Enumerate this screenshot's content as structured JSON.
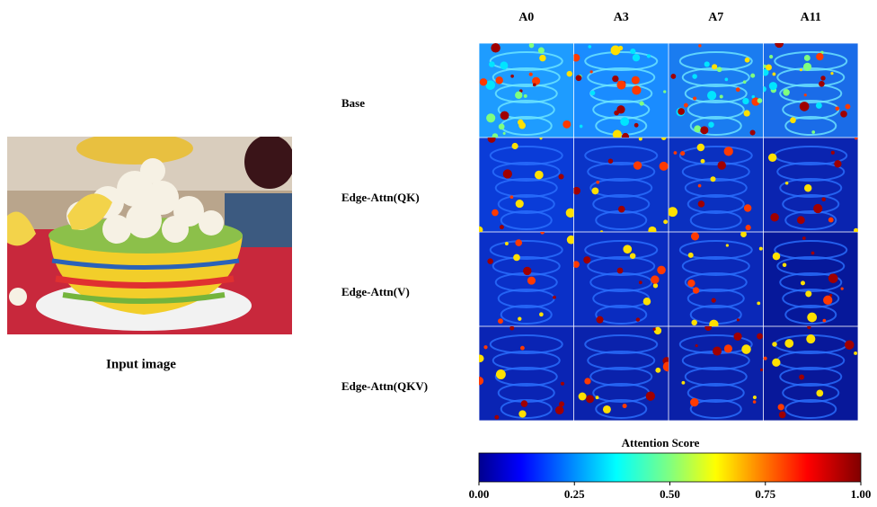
{
  "input_image": {
    "caption": "Input image"
  },
  "grid": {
    "columns": [
      "A0",
      "A3",
      "A7",
      "A11"
    ],
    "rows": [
      "Base",
      "Edge-Attn(QK)",
      "Edge-Attn(V)",
      "Edge-Attn(QKV)"
    ]
  },
  "colorbar": {
    "title": "Attention Score",
    "lim": [
      0,
      1
    ],
    "ticks": [
      {
        "value": 0,
        "label": "0.00"
      },
      {
        "value": 0.25,
        "label": "0.25"
      },
      {
        "value": 0.5,
        "label": "0.50"
      },
      {
        "value": 0.75,
        "label": "0.75"
      },
      {
        "value": 1,
        "label": "1.00"
      }
    ]
  }
}
